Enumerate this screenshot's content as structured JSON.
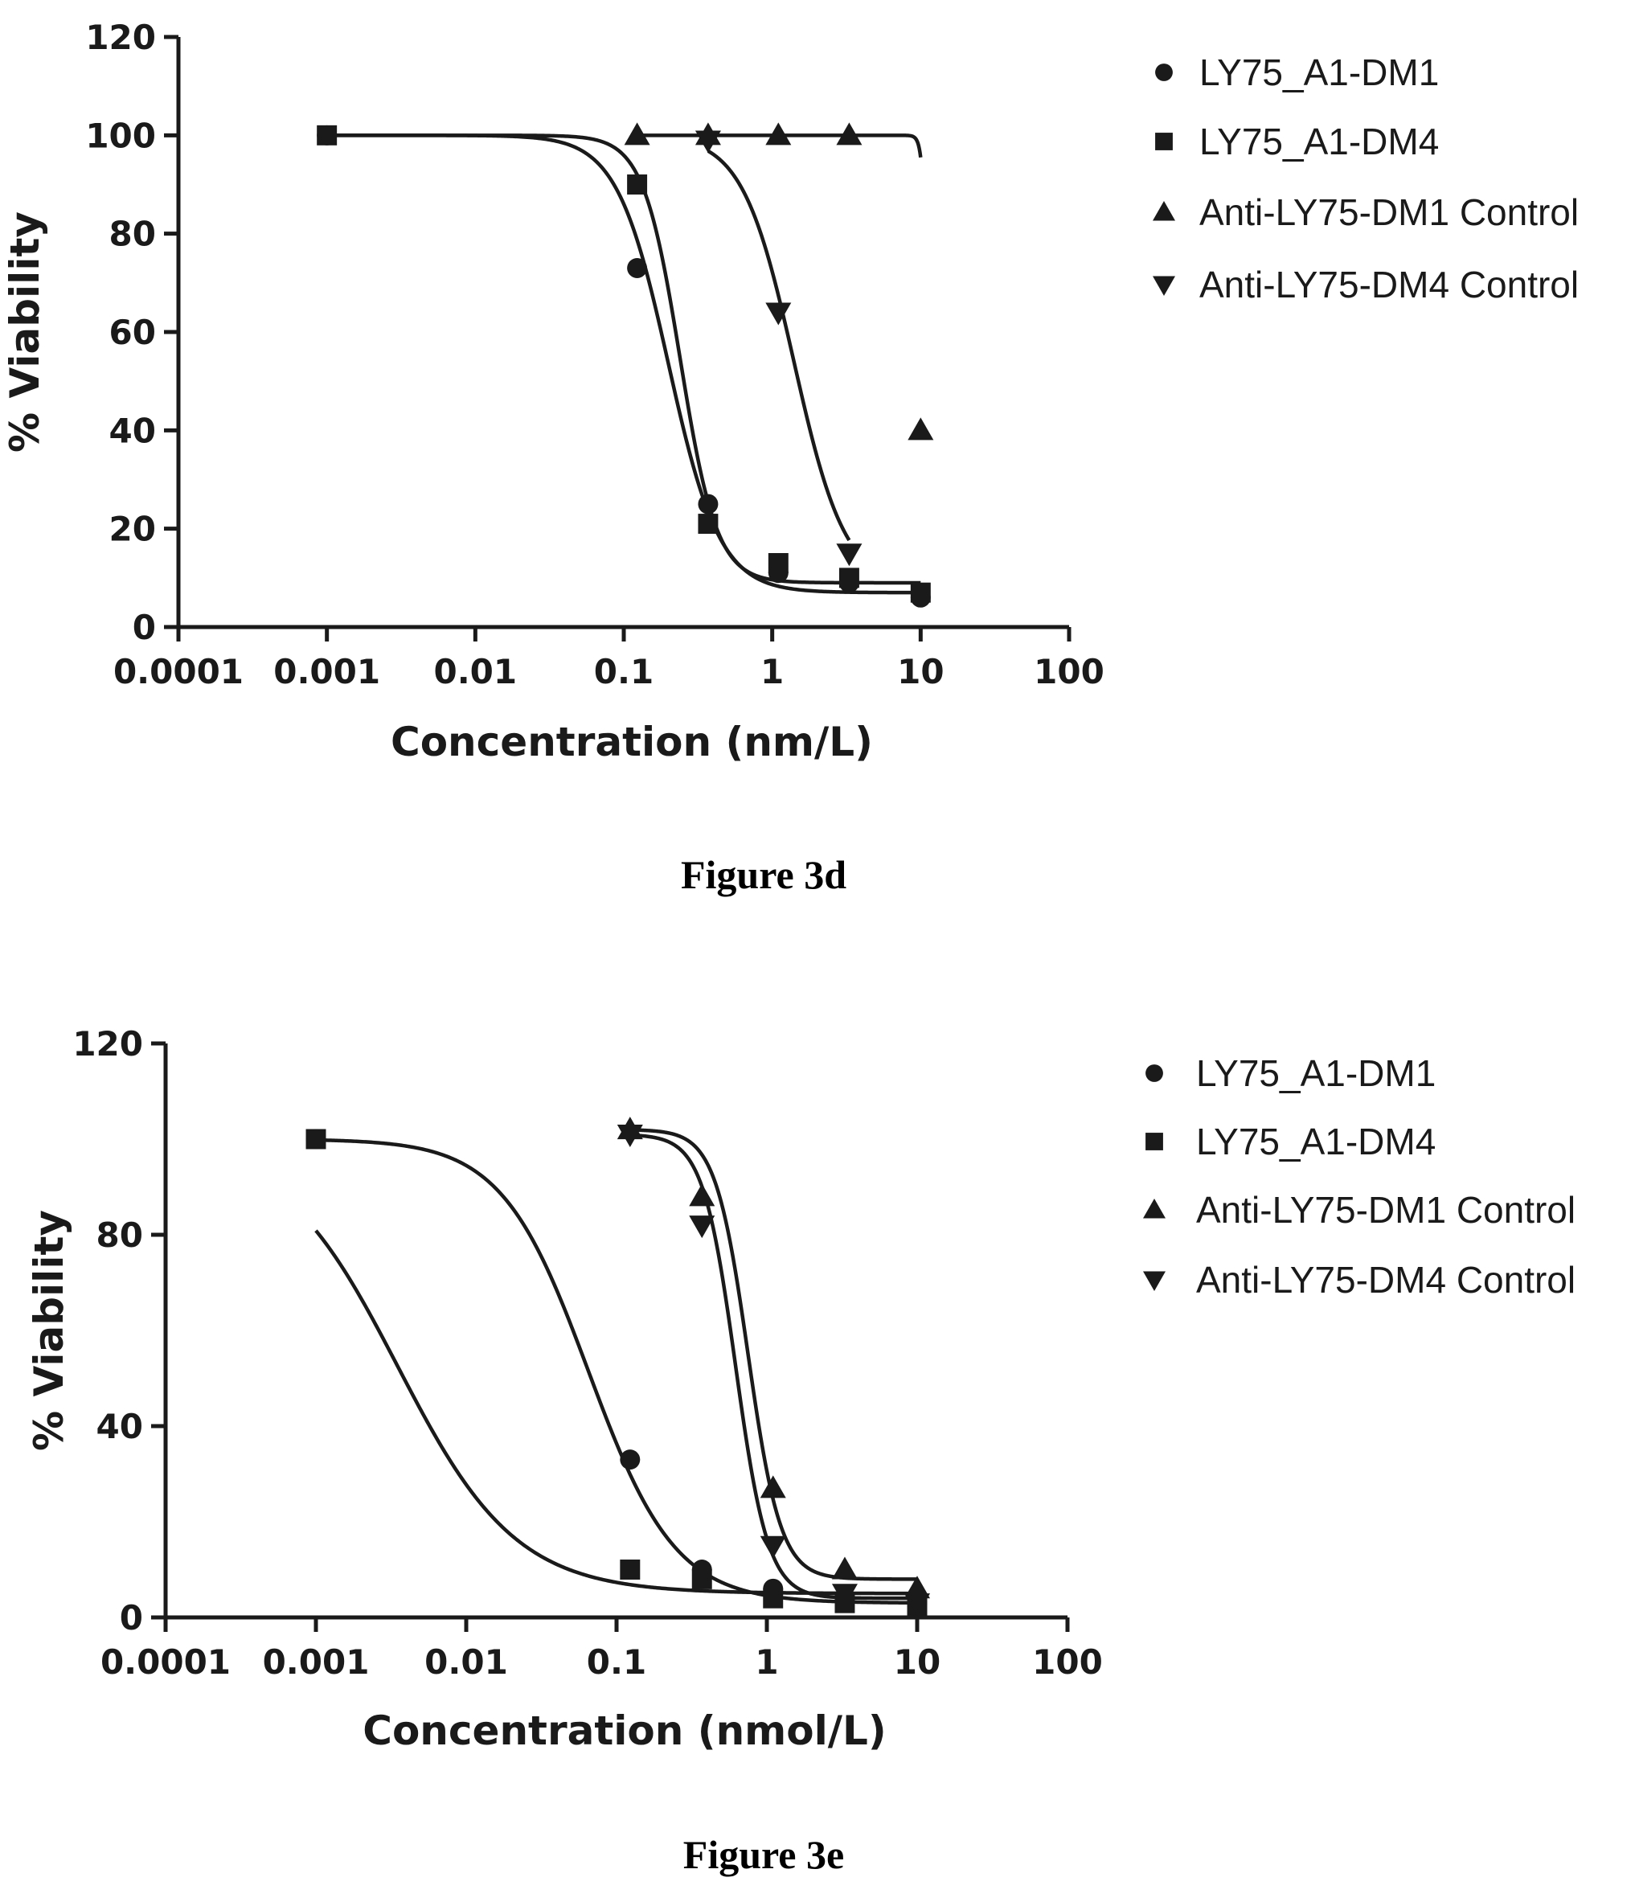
{
  "figures": [
    {
      "caption": "Figure 3d",
      "chart_data": {
        "type": "scatter",
        "xscale": "log",
        "xlim": [
          0.0001,
          100
        ],
        "ylim": [
          0,
          120
        ],
        "xticks": [
          "0.0001",
          "0.001",
          "0.01",
          "0.1",
          "1",
          "10",
          "100"
        ],
        "yticks": [
          "0",
          "20",
          "40",
          "60",
          "80",
          "100",
          "120"
        ],
        "xlabel": "Concentration (nm/L)",
        "ylabel": "% Viability",
        "grid": false,
        "legend_position": "right",
        "series": [
          {
            "name": "LY75_A1-DM1",
            "marker": "circle",
            "points": [
              [
                0.001,
                100
              ],
              [
                0.123,
                73
              ],
              [
                0.37,
                25
              ],
              [
                1.1,
                11
              ],
              [
                3.3,
                9
              ],
              [
                10,
                6
              ]
            ],
            "curve": {
              "top": 100,
              "bottom": 7,
              "ec50": 0.2,
              "hill": 2.5
            }
          },
          {
            "name": "LY75_A1-DM4",
            "marker": "square",
            "points": [
              [
                0.001,
                100
              ],
              [
                0.123,
                90
              ],
              [
                0.37,
                21
              ],
              [
                1.1,
                13
              ],
              [
                3.3,
                10
              ],
              [
                10,
                7
              ]
            ],
            "curve": {
              "top": 100,
              "bottom": 9,
              "ec50": 0.24,
              "hill": 3.5
            }
          },
          {
            "name": "Anti-LY75-DM1 Control",
            "marker": "triangle-up",
            "points": [
              [
                0.123,
                100
              ],
              [
                0.37,
                100
              ],
              [
                1.1,
                100
              ],
              [
                3.3,
                100
              ],
              [
                10,
                40
              ]
            ],
            "curve": {
              "top": 100,
              "bottom": 0,
              "ec50": 11.3,
              "hill": 25
            }
          },
          {
            "name": "Anti-LY75-DM4 Control",
            "marker": "triangle-down",
            "points": [
              [
                0.37,
                99
              ],
              [
                1.1,
                64
              ],
              [
                3.3,
                15
              ]
            ],
            "curve": {
              "top": 100,
              "bottom": 8,
              "ec50": 1.4,
              "hill": 2.5
            }
          }
        ]
      }
    },
    {
      "caption": "Figure 3e",
      "chart_data": {
        "type": "scatter",
        "xscale": "log",
        "xlim": [
          0.0001,
          100
        ],
        "ylim": [
          0,
          120
        ],
        "xticks": [
          "0.0001",
          "0.001",
          "0.01",
          "0.1",
          "1",
          "10",
          "100"
        ],
        "yticks": [
          "0",
          "40",
          "80",
          "120"
        ],
        "xlabel": "Concentration (nmol/L)",
        "ylabel": "% Viability",
        "grid": false,
        "legend_position": "right",
        "series": [
          {
            "name": "LY75_A1-DM1",
            "marker": "circle",
            "points": [
              [
                0.001,
                100
              ],
              [
                0.123,
                33
              ],
              [
                0.37,
                10
              ],
              [
                1.1,
                6
              ],
              [
                3.3,
                4
              ],
              [
                10,
                3
              ]
            ],
            "curve": {
              "top": 100,
              "bottom": 3,
              "ec50": 0.065,
              "hill": 1.5
            }
          },
          {
            "name": "LY75_A1-DM4",
            "marker": "square",
            "points": [
              [
                0.001,
                100
              ],
              [
                0.123,
                10
              ],
              [
                0.37,
                8
              ],
              [
                1.1,
                4
              ],
              [
                3.3,
                3
              ],
              [
                10,
                2
              ]
            ],
            "curve": {
              "top": 100,
              "bottom": 5,
              "ec50": 0.0035,
              "hill": 1.1
            }
          },
          {
            "name": "Anti-LY75-DM1 Control",
            "marker": "triangle-up",
            "points": [
              [
                0.123,
                102
              ],
              [
                0.37,
                88
              ],
              [
                1.1,
                27
              ],
              [
                3.3,
                10
              ],
              [
                10,
                6
              ]
            ],
            "curve": {
              "top": 102,
              "bottom": 8,
              "ec50": 0.75,
              "hill": 4
            }
          },
          {
            "name": "Anti-LY75-DM4 Control",
            "marker": "triangle-down",
            "points": [
              [
                0.123,
                101
              ],
              [
                0.37,
                82
              ],
              [
                1.1,
                15
              ],
              [
                3.3,
                5
              ],
              [
                10,
                3
              ]
            ],
            "curve": {
              "top": 101,
              "bottom": 4,
              "ec50": 0.62,
              "hill": 4
            }
          }
        ]
      }
    }
  ],
  "colors": {
    "ink": "#1a1a1a",
    "background": "#ffffff"
  }
}
